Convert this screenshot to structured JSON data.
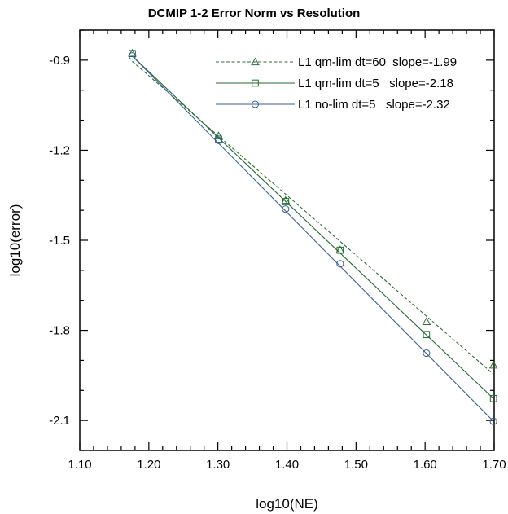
{
  "chart_data": {
    "type": "line",
    "title": "DCMIP 1-2 Error Norm vs Resolution",
    "xlabel": "log10(NE)",
    "ylabel": "log10(error)",
    "xlim": [
      1.1,
      1.7
    ],
    "ylim": [
      -2.2,
      -0.8
    ],
    "xticks": [
      "1.10",
      "1.20",
      "1.30",
      "1.40",
      "1.50",
      "1.60",
      "1.70"
    ],
    "yticks": [
      "-0.9",
      "-1.2",
      "-1.5",
      "-1.8",
      "-2.1"
    ],
    "legend_position": "top-right",
    "series": [
      {
        "name": "L1 qm-lim dt=60  slope=-1.99",
        "color": "#2e6b36",
        "dash": "dashed",
        "marker": "triangle",
        "x": [
          1.176,
          1.301,
          1.398,
          1.477,
          1.602,
          1.699
        ],
        "y": [
          -0.877,
          -1.152,
          -1.367,
          -1.532,
          -1.771,
          -1.916
        ],
        "fit_x": [
          1.176,
          1.699
        ],
        "fit_y": [
          -0.904,
          -1.946
        ]
      },
      {
        "name": "L1 qm-lim dt=5   slope=-2.18",
        "color": "#1f6b2d",
        "dash": "solid",
        "marker": "square",
        "x": [
          1.176,
          1.301,
          1.398,
          1.477,
          1.602,
          1.699
        ],
        "y": [
          -0.878,
          -1.163,
          -1.371,
          -1.533,
          -1.814,
          -2.027
        ],
        "fit_x": [
          1.176,
          1.699
        ],
        "fit_y": [
          -0.886,
          -2.027
        ]
      },
      {
        "name": "L1 no-lim dt=5   slope=-2.32",
        "color": "#3b5b9a",
        "dash": "solid",
        "marker": "circle",
        "x": [
          1.176,
          1.301,
          1.398,
          1.477,
          1.602,
          1.699
        ],
        "y": [
          -0.886,
          -1.167,
          -1.396,
          -1.578,
          -1.876,
          -2.103
        ],
        "fit_x": [
          1.176,
          1.699
        ],
        "fit_y": [
          -0.886,
          -2.103
        ]
      }
    ]
  }
}
